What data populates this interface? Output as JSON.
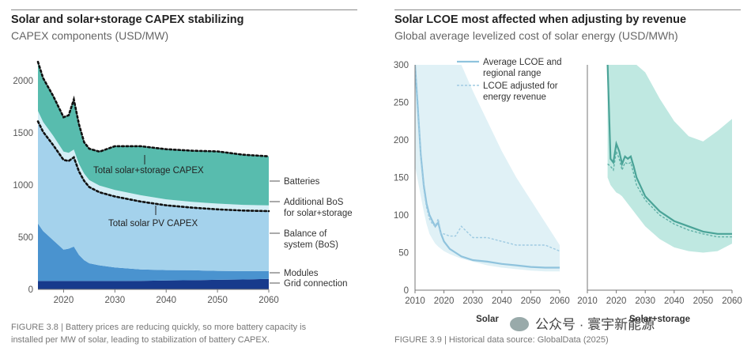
{
  "left": {
    "title": "Solar and solar+storage CAPEX stabilizing",
    "subtitle": "CAPEX components (USD/MW)",
    "caption_line1": "FIGURE 3.8 | Battery prices are reducing quickly, so more battery capacity is",
    "caption_line2": "installed per MW of solar, leading to stabilization of battery CAPEX."
  },
  "right": {
    "title": "Solar LCOE most affected when adjusting by revenue",
    "subtitle": "Global average levelized cost of solar energy (USD/MWh)",
    "caption": "FIGURE 3.9 | Historical data source: GlobalData (2025)"
  },
  "watermark": "公众号 · 寰宇新能源",
  "chart_data": [
    {
      "type": "area",
      "title": "Solar and solar+storage CAPEX stabilizing",
      "subtitle": "CAPEX components (USD/MW)",
      "xlim": [
        2015,
        2060
      ],
      "ylim": [
        0,
        2200
      ],
      "xticks": [
        2020,
        2030,
        2040,
        2050,
        2060
      ],
      "yticks": [
        0,
        500,
        1000,
        1500,
        2000
      ],
      "x": [
        2015,
        2016,
        2018,
        2020,
        2021,
        2022,
        2023,
        2024,
        2025,
        2027,
        2030,
        2035,
        2040,
        2045,
        2050,
        2055,
        2060
      ],
      "stack_series": [
        {
          "name": "Grid connection",
          "color": "#173a8c",
          "values": [
            80,
            80,
            80,
            80,
            80,
            80,
            80,
            80,
            80,
            80,
            80,
            82,
            85,
            88,
            92,
            95,
            100
          ]
        },
        {
          "name": "Modules",
          "color": "#4a93cf",
          "values": [
            550,
            480,
            390,
            300,
            310,
            330,
            250,
            200,
            170,
            150,
            130,
            110,
            100,
            95,
            85,
            80,
            75
          ]
        },
        {
          "name": "Balance of system (BoS)",
          "color": "#a4d2ec",
          "values": [
            980,
            950,
            910,
            860,
            840,
            855,
            800,
            760,
            730,
            700,
            680,
            650,
            620,
            600,
            590,
            580,
            575
          ]
        },
        {
          "name": "Additional BoS for solar+storage",
          "color": "#d4eef6",
          "values": [
            100,
            95,
            90,
            80,
            78,
            75,
            72,
            70,
            68,
            65,
            62,
            60,
            58,
            56,
            55,
            55,
            55
          ]
        },
        {
          "name": "Batteries",
          "color": "#58bcae",
          "values": [
            470,
            420,
            380,
            330,
            360,
            480,
            380,
            300,
            300,
            325,
            420,
            470,
            480,
            490,
            500,
            480,
            470
          ]
        }
      ],
      "lines": [
        {
          "name": "Total solar+storage CAPEX",
          "values": [
            2180,
            2025,
            1850,
            1650,
            1668,
            1820,
            1582,
            1410,
            1348,
            1320,
            1372,
            1372,
            1343,
            1329,
            1322,
            1290,
            1275
          ]
        },
        {
          "name": "Total solar PV CAPEX",
          "values": [
            1610,
            1510,
            1380,
            1240,
            1230,
            1265,
            1130,
            1040,
            980,
            930,
            890,
            842,
            805,
            783,
            767,
            755,
            750
          ]
        }
      ],
      "annotations": [
        "Total solar+storage CAPEX",
        "Total solar PV CAPEX"
      ],
      "legend": [
        "Batteries",
        "Additional BoS for solar+storage",
        "Balance of system (BoS)",
        "Modules",
        "Grid connection"
      ]
    },
    {
      "type": "line",
      "title": "Solar LCOE most affected when adjusting by revenue",
      "subtitle": "Global average levelized cost of solar energy (USD/MWh)",
      "ylim": [
        0,
        300
      ],
      "yticks": [
        0,
        50,
        100,
        150,
        200,
        250,
        300
      ],
      "xticks": [
        2010,
        2020,
        2030,
        2040,
        2050,
        2060
      ],
      "legend": [
        "Average LCOE and regional range",
        "LCOE adjusted for energy revenue"
      ],
      "legend_position": "top",
      "panels": [
        {
          "label": "Solar",
          "xlim": [
            2010,
            2060
          ],
          "x": [
            2010,
            2011,
            2012,
            2013,
            2014,
            2015,
            2016,
            2017,
            2018,
            2019,
            2020,
            2022,
            2024,
            2026,
            2030,
            2035,
            2040,
            2045,
            2050,
            2055,
            2060
          ],
          "range_low": [
            165,
            145,
            125,
            105,
            88,
            75,
            68,
            62,
            58,
            55,
            52,
            48,
            45,
            42,
            38,
            33,
            30,
            28,
            26,
            25,
            25
          ],
          "range_high": [
            300,
            300,
            300,
            300,
            300,
            300,
            300,
            300,
            300,
            300,
            300,
            300,
            300,
            300,
            265,
            225,
            185,
            150,
            120,
            90,
            60
          ],
          "average": [
            300,
            240,
            180,
            140,
            115,
            100,
            92,
            85,
            90,
            75,
            65,
            55,
            50,
            45,
            40,
            38,
            35,
            33,
            31,
            30,
            30
          ],
          "adjusted": [
            300,
            250,
            175,
            135,
            110,
            95,
            88,
            85,
            95,
            75,
            75,
            72,
            72,
            85,
            70,
            70,
            65,
            60,
            60,
            60,
            52
          ]
        },
        {
          "label": "Solar+storage",
          "xlim": [
            2010,
            2060
          ],
          "x": [
            2017,
            2018,
            2019,
            2020,
            2021,
            2022,
            2023,
            2024,
            2025,
            2026,
            2027,
            2030,
            2035,
            2040,
            2045,
            2050,
            2055,
            2060
          ],
          "range_low": [
            150,
            140,
            135,
            130,
            128,
            125,
            120,
            115,
            110,
            105,
            100,
            85,
            68,
            57,
            52,
            50,
            52,
            62
          ],
          "range_high": [
            300,
            300,
            300,
            300,
            300,
            300,
            300,
            300,
            300,
            300,
            300,
            290,
            255,
            225,
            205,
            198,
            212,
            228
          ],
          "average": [
            300,
            175,
            170,
            195,
            185,
            168,
            178,
            175,
            178,
            165,
            150,
            125,
            105,
            92,
            85,
            78,
            75,
            75
          ],
          "adjusted": [
            168,
            165,
            160,
            185,
            175,
            160,
            170,
            168,
            170,
            155,
            140,
            120,
            100,
            88,
            80,
            75,
            71,
            71
          ]
        }
      ]
    }
  ]
}
